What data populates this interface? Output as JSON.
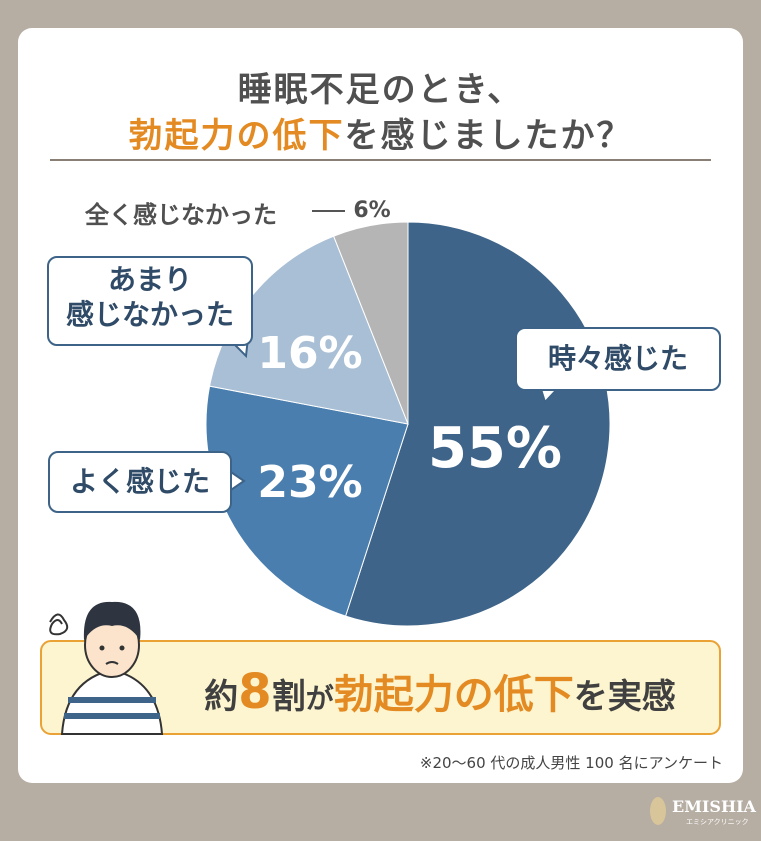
{
  "title_line1": "睡眠不足のとき、",
  "title_line2": {
    "highlight": "勃起力の低下",
    "rest": "を感じましたか？"
  },
  "chart_data": {
    "type": "pie",
    "categories": [
      "時々感じた",
      "よく感じた",
      "あまり\n感じなかった",
      "全く感じなかった"
    ],
    "values": [
      55,
      23,
      16,
      6
    ],
    "value_labels": [
      "55%",
      "23%",
      "16%",
      "6%"
    ],
    "colors": [
      "#3e6489",
      "#4a7eae",
      "#a9bfd5",
      "#b5b5b5"
    ]
  },
  "conclusion": {
    "prefix": "約",
    "number": 8,
    "unit": "割",
    "particle": "が",
    "highlight": "勃起力の低下",
    "suffix": "を実感"
  },
  "footnote": "※20〜60 代の成人男性 100 名にアンケート",
  "logo": {
    "name": "EMISHIA",
    "sub": "エミシアクリニック"
  }
}
